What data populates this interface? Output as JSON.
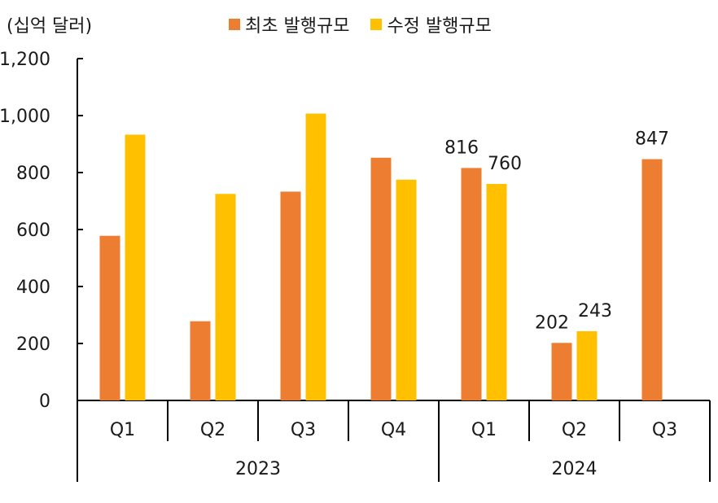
{
  "chart_data": {
    "type": "bar",
    "unit_label": "(십억 달러)",
    "title": "",
    "xlabel": "",
    "ylabel": "",
    "ylim": [
      0,
      1200
    ],
    "yticks": [
      "0",
      "200",
      "400",
      "600",
      "800",
      "1,000",
      "1,200"
    ],
    "ytick_values": [
      0,
      200,
      400,
      600,
      800,
      1000,
      1200
    ],
    "categories": [
      "Q1",
      "Q2",
      "Q3",
      "Q4",
      "Q1",
      "Q2",
      "Q3"
    ],
    "groups": [
      {
        "label": "2023",
        "categories": 4
      },
      {
        "label": "2024",
        "categories": 3
      }
    ],
    "series": [
      {
        "name": "최초 발행규모",
        "color": "#ED7D31",
        "values": [
          578,
          278,
          733,
          852,
          816,
          202,
          847
        ]
      },
      {
        "name": "수정 발행규모",
        "color": "#FFC000",
        "values": [
          933,
          725,
          1007,
          775,
          760,
          243,
          null
        ]
      }
    ],
    "data_labels": [
      {
        "series": 0,
        "index": 4,
        "text": "816"
      },
      {
        "series": 1,
        "index": 4,
        "text": "760"
      },
      {
        "series": 0,
        "index": 5,
        "text": "202"
      },
      {
        "series": 1,
        "index": 5,
        "text": "243"
      },
      {
        "series": 0,
        "index": 6,
        "text": "847"
      }
    ],
    "grid": false,
    "legend_position": "top"
  }
}
